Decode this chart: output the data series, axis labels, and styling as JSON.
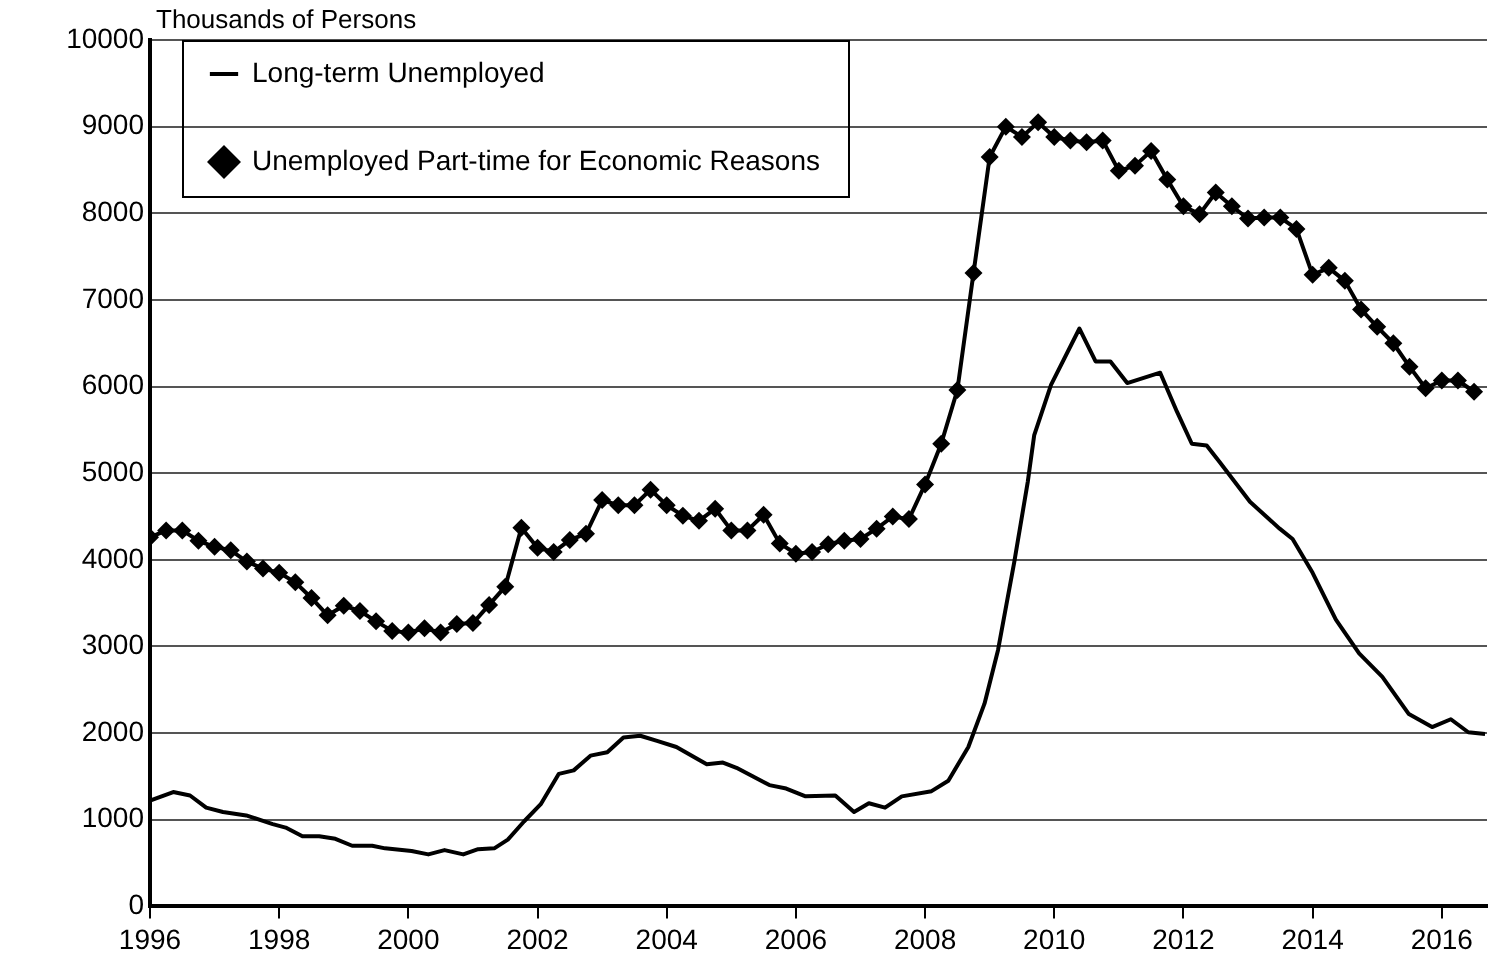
{
  "chart_data": {
    "type": "line",
    "ylabel": "Thousands of Persons",
    "xlim": [
      1996,
      2016.7
    ],
    "xticks": [
      1996,
      1998,
      2000,
      2002,
      2004,
      2006,
      2008,
      2010,
      2012,
      2014,
      2016
    ],
    "ylim": [
      0,
      10000
    ],
    "yticks": [
      0,
      1000,
      2000,
      3000,
      4000,
      5000,
      6000,
      7000,
      8000,
      9000,
      10000
    ],
    "grid": "y",
    "legend": "top left",
    "line_style": "solid",
    "series": [
      {
        "name": "Long-term Unemployed",
        "color": "#000000",
        "marker": "none",
        "x": [
          1996.0,
          1996.36,
          1996.62,
          1996.87,
          1997.13,
          1997.49,
          1997.9,
          1998.1,
          1998.36,
          1998.62,
          1998.87,
          1999.13,
          1999.44,
          1999.64,
          2000.05,
          2000.31,
          2000.56,
          2000.85,
          2001.08,
          2001.33,
          2001.54,
          2001.79,
          2002.05,
          2002.33,
          2002.56,
          2002.82,
          2003.08,
          2003.33,
          2003.59,
          2003.85,
          2004.15,
          2004.62,
          2004.87,
          2005.08,
          2005.59,
          2005.85,
          2006.15,
          2006.61,
          2006.9,
          2007.13,
          2007.38,
          2007.64,
          2008.1,
          2008.36,
          2008.67,
          2008.92,
          2009.13,
          2009.38,
          2009.59,
          2009.69,
          2009.95,
          2010.39,
          2010.64,
          2010.87,
          2011.13,
          2011.64,
          2011.9,
          2012.13,
          2012.36,
          2012.56,
          2013.03,
          2013.49,
          2013.69,
          2014.0,
          2014.36,
          2014.72,
          2015.08,
          2015.49,
          2015.85,
          2016.14,
          2016.41,
          2016.67
        ],
        "values": [
          1220,
          1320,
          1280,
          1140,
          1090,
          1050,
          950,
          910,
          810,
          810,
          780,
          700,
          700,
          670,
          640,
          600,
          650,
          600,
          660,
          670,
          770,
          980,
          1180,
          1530,
          1570,
          1740,
          1780,
          1950,
          1970,
          1910,
          1840,
          1640,
          1660,
          1600,
          1400,
          1360,
          1270,
          1280,
          1090,
          1190,
          1140,
          1270,
          1330,
          1450,
          1840,
          2340,
          2960,
          3970,
          4900,
          5440,
          6020,
          6670,
          6290,
          6290,
          6040,
          6160,
          5710,
          5340,
          5320,
          5130,
          4670,
          4360,
          4240,
          3850,
          3310,
          2920,
          2650,
          2220,
          2070,
          2160,
          2010,
          1990
        ]
      },
      {
        "name": "Unemployed Part-time for Economic Reasons",
        "color": "#000000",
        "marker": "diamond",
        "x": [
          1996.0,
          1996.25,
          1996.5,
          1996.75,
          1997.0,
          1997.25,
          1997.5,
          1997.75,
          1998.0,
          1998.25,
          1998.5,
          1998.75,
          1999.0,
          1999.25,
          1999.5,
          1999.75,
          2000.0,
          2000.25,
          2000.5,
          2000.75,
          2001.0,
          2001.25,
          2001.5,
          2001.75,
          2002.0,
          2002.25,
          2002.5,
          2002.75,
          2003.0,
          2003.25,
          2003.5,
          2003.75,
          2004.0,
          2004.25,
          2004.5,
          2004.75,
          2005.0,
          2005.25,
          2005.5,
          2005.75,
          2006.0,
          2006.25,
          2006.5,
          2006.75,
          2007.0,
          2007.25,
          2007.5,
          2007.75,
          2008.0,
          2008.25,
          2008.5,
          2008.75,
          2009.0,
          2009.25,
          2009.5,
          2009.75,
          2010.0,
          2010.25,
          2010.5,
          2010.75,
          2011.0,
          2011.25,
          2011.5,
          2011.75,
          2012.0,
          2012.25,
          2012.5,
          2012.75,
          2013.0,
          2013.25,
          2013.5,
          2013.75,
          2014.0,
          2014.25,
          2014.5,
          2014.75,
          2015.0,
          2015.25,
          2015.5,
          2015.75,
          2016.0,
          2016.25,
          2016.5
        ],
        "values": [
          4260,
          4340,
          4340,
          4220,
          4150,
          4110,
          3980,
          3900,
          3850,
          3740,
          3560,
          3360,
          3470,
          3410,
          3290,
          3180,
          3160,
          3210,
          3160,
          3260,
          3270,
          3480,
          3690,
          4370,
          4140,
          4090,
          4230,
          4300,
          4690,
          4630,
          4630,
          4810,
          4630,
          4510,
          4450,
          4590,
          4340,
          4340,
          4520,
          4190,
          4070,
          4090,
          4180,
          4220,
          4240,
          4360,
          4500,
          4470,
          4870,
          5340,
          5960,
          7310,
          8650,
          9000,
          8880,
          9050,
          8880,
          8840,
          8820,
          8840,
          8490,
          8550,
          8720,
          8390,
          8080,
          7990,
          8240,
          8080,
          7940,
          7950,
          7950,
          7820,
          7290,
          7370,
          7220,
          6890,
          6690,
          6500,
          6230,
          5980,
          6070,
          6070,
          5940
        ]
      }
    ]
  }
}
